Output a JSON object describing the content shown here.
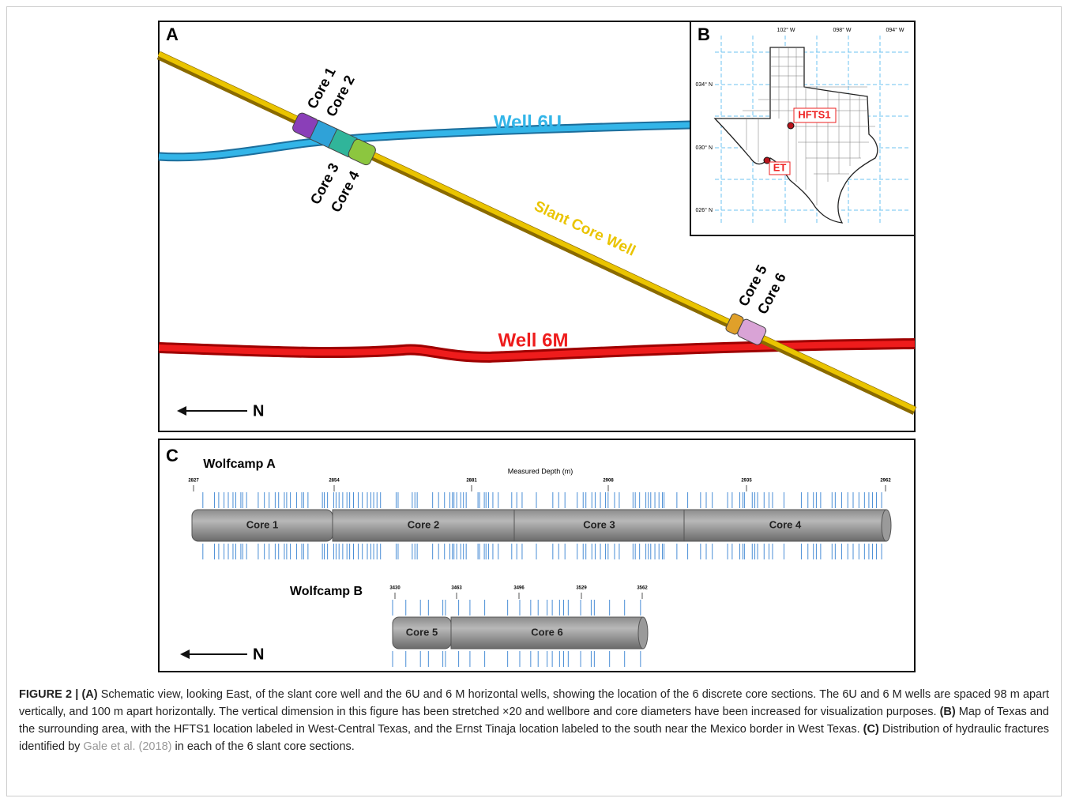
{
  "panel_a": {
    "label": "A",
    "well_6u": "Well 6U",
    "well_6m": "Well 6M",
    "slant": "Slant Core Well",
    "cores": [
      "Core 1",
      "Core 2",
      "Core 3",
      "Core 4",
      "Core 5",
      "Core 6"
    ],
    "direction": "N"
  },
  "panel_b": {
    "label": "B",
    "longitudes": [
      "102° W",
      "098° W",
      "094° W"
    ],
    "latitudes": [
      "034° N",
      "030° N",
      "026° N"
    ],
    "sites": [
      "HFTS1",
      "ET"
    ]
  },
  "panel_c": {
    "label": "C",
    "axis_title": "Measured Depth (m)",
    "direction": "N",
    "wolfcamp_a": {
      "name": "Wolfcamp A",
      "ticks": [
        2827,
        2854,
        2881,
        2908,
        2935,
        2962
      ],
      "cores": [
        "Core 1",
        "Core 2",
        "Core 3",
        "Core 4"
      ]
    },
    "wolfcamp_b": {
      "name": "Wolfcamp B",
      "ticks": [
        3430,
        3463,
        3496,
        3529,
        3562
      ],
      "cores": [
        "Core 5",
        "Core 6"
      ]
    }
  },
  "caption": {
    "figure": "FIGURE 2 |",
    "a_label": "(A)",
    "a_text": "Schematic view, looking East, of the slant core well and the 6U and 6 M horizontal wells, showing the location of the 6 discrete core sections. The 6U and 6 M wells are spaced 98 m apart vertically, and 100 m apart horizontally. The vertical dimension in this figure has been stretched ×20 and wellbore and core diameters have been increased for visualization purposes.",
    "b_label": "(B)",
    "b_text": "Map of Texas and the surrounding area, with the HFTS1 location labeled in West-Central Texas, and the Ernst Tinaja location labeled to the south near the Mexico border in West Texas.",
    "c_label": "(C)",
    "c_text_before": "Distribution of hydraulic fractures identified by",
    "citation": "Gale et al. (2018)",
    "c_text_after": "in each of the 6 slant core sections."
  }
}
